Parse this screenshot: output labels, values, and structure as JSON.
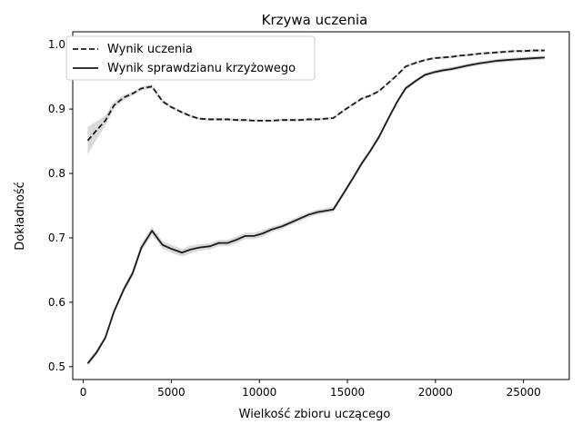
{
  "chart_data": {
    "type": "line",
    "title": "Krzywa uczenia",
    "xlabel": "Wielkość zbioru uczącego",
    "ylabel": "Dokładność",
    "xlim": [
      -600,
      27600
    ],
    "ylim": [
      0.48,
      1.02
    ],
    "xticks": [
      0,
      5000,
      10000,
      15000,
      20000,
      25000
    ],
    "yticks": [
      0.5,
      0.6,
      0.7,
      0.8,
      0.9,
      1.0
    ],
    "ytick_labels": [
      "0.5",
      "0.6",
      "0.7",
      "0.8",
      "0.9",
      "1.0"
    ],
    "grid": false,
    "legend_position": "top-left",
    "band_color": "#d9d9d9",
    "line_color": "#1a1a1a",
    "x": [
      250,
      750,
      1250,
      1750,
      2300,
      2800,
      3300,
      3900,
      4500,
      5000,
      5600,
      6100,
      6600,
      7200,
      7700,
      8200,
      8700,
      9200,
      9700,
      10200,
      10700,
      11300,
      11800,
      12300,
      12800,
      13300,
      14200,
      14800,
      15300,
      15800,
      16300,
      16800,
      17300,
      17800,
      18300,
      18900,
      19400,
      19900,
      20400,
      20900,
      21400,
      21900,
      22500,
      23000,
      23500,
      24000,
      24500,
      25000,
      25600,
      26200
    ],
    "series": [
      {
        "name": "Wynik uczenia",
        "style": "dashed",
        "values": [
          0.851,
          0.867,
          0.882,
          0.906,
          0.918,
          0.924,
          0.932,
          0.935,
          0.912,
          0.903,
          0.895,
          0.889,
          0.885,
          0.884,
          0.884,
          0.884,
          0.883,
          0.883,
          0.882,
          0.882,
          0.882,
          0.883,
          0.883,
          0.883,
          0.884,
          0.884,
          0.886,
          0.898,
          0.907,
          0.916,
          0.921,
          0.928,
          0.94,
          0.952,
          0.966,
          0.972,
          0.976,
          0.979,
          0.98,
          0.981,
          0.983,
          0.984,
          0.986,
          0.987,
          0.988,
          0.989,
          0.99,
          0.99,
          0.991,
          0.991
        ],
        "band": [
          0.021,
          0.014,
          0.008,
          0.005,
          0.004,
          0.003,
          0.003,
          0.003,
          0.003,
          0.002,
          0.002,
          0.002,
          0.002,
          0.002,
          0.002,
          0.002,
          0.002,
          0.002,
          0.002,
          0.002,
          0.002,
          0.002,
          0.002,
          0.002,
          0.002,
          0.002,
          0.002,
          0.002,
          0.002,
          0.002,
          0.002,
          0.002,
          0.002,
          0.002,
          0.002,
          0.002,
          0.002,
          0.002,
          0.002,
          0.002,
          0.002,
          0.002,
          0.002,
          0.002,
          0.002,
          0.002,
          0.002,
          0.002,
          0.002,
          0.002
        ]
      },
      {
        "name": "Wynik sprawdzianu krzyżowego",
        "style": "solid",
        "values": [
          0.505,
          0.522,
          0.545,
          0.586,
          0.62,
          0.645,
          0.685,
          0.711,
          0.689,
          0.683,
          0.677,
          0.682,
          0.685,
          0.687,
          0.692,
          0.692,
          0.697,
          0.703,
          0.703,
          0.707,
          0.713,
          0.718,
          0.724,
          0.73,
          0.736,
          0.74,
          0.744,
          0.77,
          0.792,
          0.815,
          0.835,
          0.857,
          0.884,
          0.91,
          0.932,
          0.944,
          0.953,
          0.957,
          0.96,
          0.962,
          0.965,
          0.968,
          0.971,
          0.973,
          0.975,
          0.976,
          0.977,
          0.978,
          0.979,
          0.98
        ],
        "band": [
          0.004,
          0.004,
          0.004,
          0.004,
          0.005,
          0.005,
          0.006,
          0.006,
          0.006,
          0.006,
          0.006,
          0.006,
          0.005,
          0.005,
          0.005,
          0.005,
          0.005,
          0.005,
          0.005,
          0.005,
          0.004,
          0.004,
          0.004,
          0.004,
          0.004,
          0.004,
          0.004,
          0.004,
          0.004,
          0.004,
          0.004,
          0.004,
          0.003,
          0.003,
          0.003,
          0.003,
          0.003,
          0.003,
          0.003,
          0.003,
          0.003,
          0.003,
          0.003,
          0.003,
          0.003,
          0.003,
          0.003,
          0.003,
          0.003,
          0.003
        ]
      }
    ]
  }
}
